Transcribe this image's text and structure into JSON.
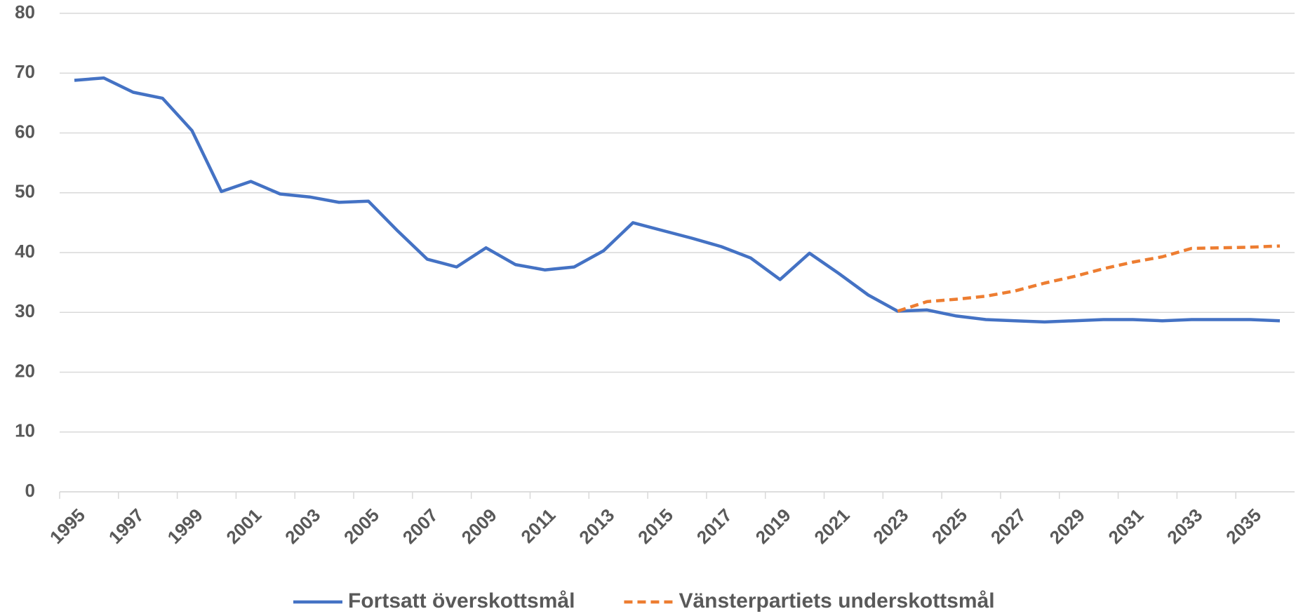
{
  "chart_data": {
    "type": "line",
    "categories": [
      "1995",
      null,
      "1997",
      null,
      "1999",
      null,
      "2001",
      null,
      "2003",
      null,
      "2005",
      null,
      "2007",
      null,
      "2009",
      null,
      "2011",
      null,
      "2013",
      null,
      "2015",
      null,
      "2017",
      null,
      "2019",
      null,
      "2021",
      null,
      "2023",
      null,
      "2025",
      null,
      "2027",
      null,
      "2029",
      null,
      "2031",
      null,
      "2033",
      null,
      "2035",
      null
    ],
    "series": [
      {
        "name": "Fortsatt överskottsmål",
        "color": "#4472c4",
        "dash": false,
        "values": [
          68.8,
          69.2,
          66.8,
          65.8,
          60.4,
          50.2,
          51.9,
          49.8,
          49.3,
          48.4,
          48.6,
          43.6,
          38.9,
          37.6,
          40.8,
          38.0,
          37.1,
          37.6,
          40.3,
          45.0,
          43.7,
          42.4,
          41.0,
          39.1,
          35.5,
          39.9,
          36.5,
          32.9,
          30.2,
          30.4,
          29.4,
          28.8,
          28.6,
          28.4,
          28.6,
          28.8,
          28.8,
          28.6,
          28.8,
          28.8,
          28.8,
          28.6
        ]
      },
      {
        "name": "Vänsterpartiets underskottsmål",
        "color": "#ed7d31",
        "dash": true,
        "values": [
          null,
          null,
          null,
          null,
          null,
          null,
          null,
          null,
          null,
          null,
          null,
          null,
          null,
          null,
          null,
          null,
          null,
          null,
          null,
          null,
          null,
          null,
          null,
          null,
          null,
          null,
          null,
          null,
          30.2,
          31.8,
          32.2,
          32.7,
          33.6,
          34.9,
          36.0,
          37.3,
          38.4,
          39.3,
          40.7,
          40.8,
          40.9,
          41.1
        ]
      }
    ],
    "ylim": [
      0,
      80
    ],
    "yticks": [
      0,
      10,
      20,
      30,
      40,
      50,
      60,
      70,
      80
    ],
    "grid": true,
    "legend": "bottom"
  }
}
